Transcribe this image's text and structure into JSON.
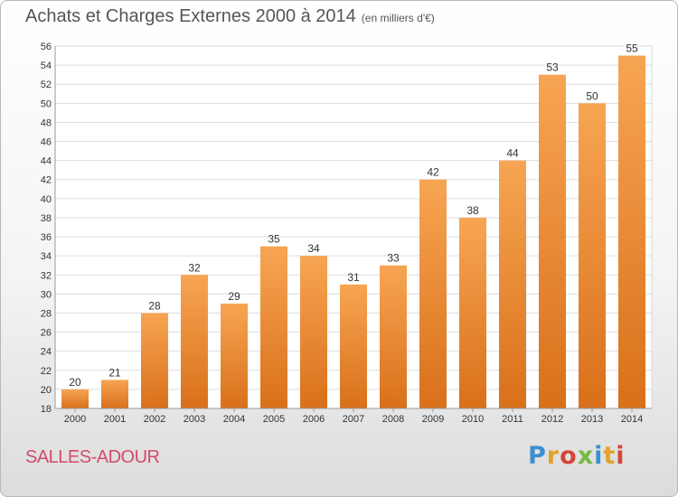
{
  "chart_data": {
    "type": "bar",
    "title": "Achats et Charges Externes 2000 à 2014",
    "unit": "(en milliers d'€)",
    "categories": [
      "2000",
      "2001",
      "2002",
      "2003",
      "2004",
      "2005",
      "2006",
      "2007",
      "2008",
      "2009",
      "2010",
      "2011",
      "2012",
      "2013",
      "2014"
    ],
    "values": [
      20,
      21,
      28,
      32,
      29,
      35,
      34,
      31,
      33,
      42,
      38,
      44,
      53,
      50,
      55
    ],
    "ylim": [
      18,
      56
    ],
    "yticks": [
      18,
      20,
      22,
      24,
      26,
      28,
      30,
      32,
      34,
      36,
      38,
      40,
      42,
      44,
      46,
      48,
      50,
      52,
      54,
      56
    ],
    "grid": true,
    "bar_color_top": "#f7a553",
    "bar_color_bottom": "#d9701a"
  },
  "footer": {
    "place": "SALLES-ADOUR",
    "logo_letters": [
      "P",
      "r",
      "o",
      "x",
      "i",
      "t",
      "i"
    ]
  }
}
